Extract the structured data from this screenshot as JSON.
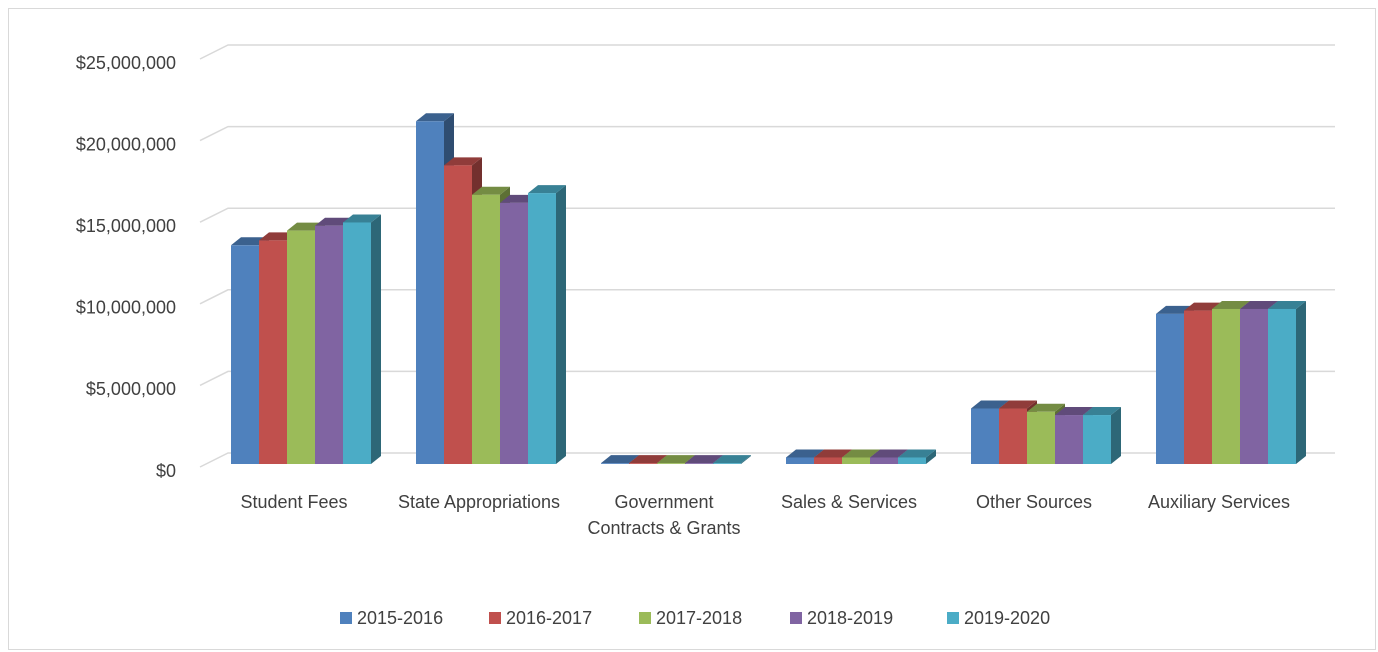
{
  "chart_data": {
    "type": "bar3d",
    "categories": [
      "Student Fees",
      "State Appropriations",
      "Government Contracts & Grants",
      "Sales & Services",
      "Other Sources",
      "Auxiliary Services"
    ],
    "series": [
      {
        "name": "2015-2016",
        "color": "#4f81bd",
        "values": [
          13400000,
          21000000,
          50000,
          400000,
          3400000,
          9200000
        ]
      },
      {
        "name": "2016-2017",
        "color": "#c0504d",
        "values": [
          13700000,
          18300000,
          50000,
          400000,
          3400000,
          9400000
        ]
      },
      {
        "name": "2017-2018",
        "color": "#9bbb59",
        "values": [
          14300000,
          16500000,
          50000,
          400000,
          3200000,
          9500000
        ]
      },
      {
        "name": "2018-2019",
        "color": "#8064a2",
        "values": [
          14600000,
          16000000,
          50000,
          400000,
          3000000,
          9500000
        ]
      },
      {
        "name": "2019-2020",
        "color": "#4bacc6",
        "values": [
          14800000,
          16600000,
          50000,
          400000,
          3000000,
          9500000
        ]
      }
    ],
    "ylim": [
      0,
      25000000
    ],
    "yticks": [
      {
        "value": 0,
        "label": "$0"
      },
      {
        "value": 5000000,
        "label": "$5,000,000"
      },
      {
        "value": 10000000,
        "label": "$10,000,000"
      },
      {
        "value": 15000000,
        "label": "$15,000,000"
      },
      {
        "value": 20000000,
        "label": "$20,000,000"
      },
      {
        "value": 25000000,
        "label": "$25,000,000"
      }
    ],
    "grid": true,
    "legend": "bottom"
  }
}
